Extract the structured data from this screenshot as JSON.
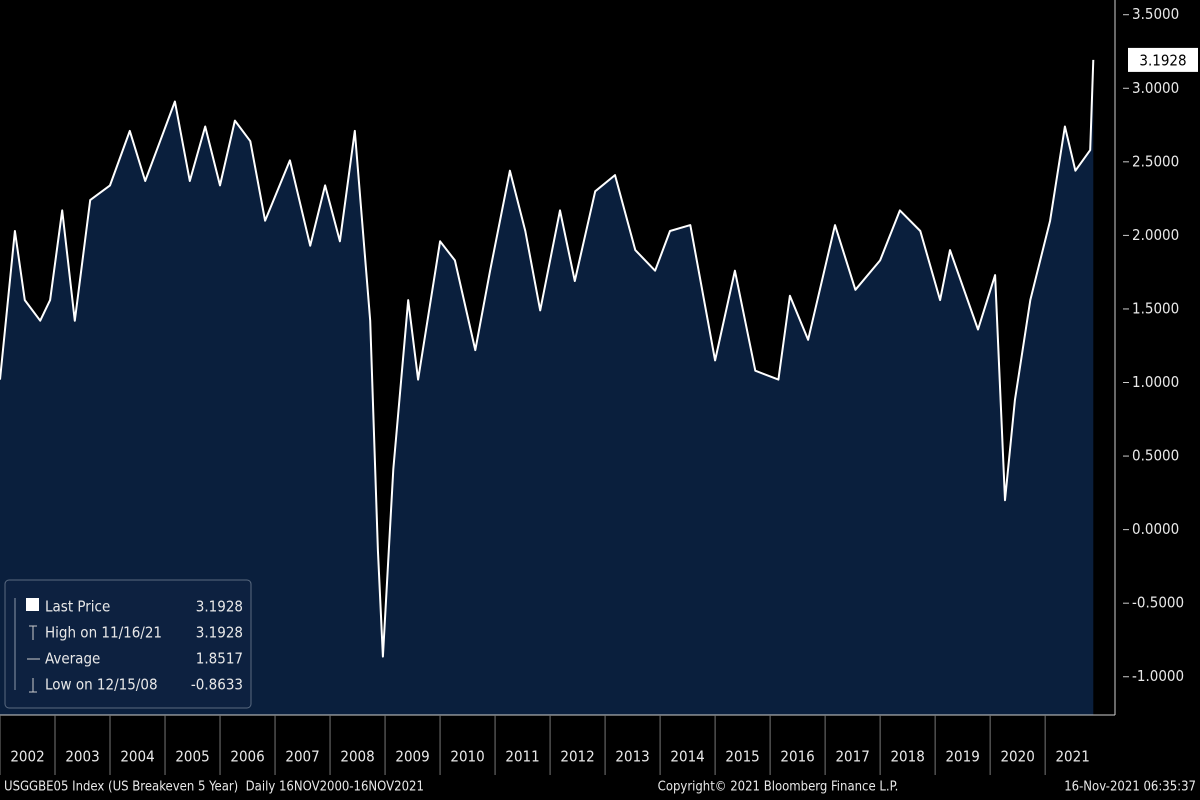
{
  "chart_data": {
    "type": "area",
    "series": [
      {
        "name": "Last Price",
        "color": "#ffffff",
        "fill": "#0a1f3d",
        "x": [
          2002.0,
          2002.27,
          2002.45,
          2002.73,
          2002.91,
          2003.13,
          2003.36,
          2003.64,
          2004.0,
          2004.36,
          2004.64,
          2004.91,
          2005.18,
          2005.45,
          2005.73,
          2006.0,
          2006.27,
          2006.55,
          2006.82,
          2007.27,
          2007.64,
          2007.91,
          2008.18,
          2008.45,
          2008.73,
          2008.87,
          2008.96,
          2009.15,
          2009.42,
          2009.6,
          2010.0,
          2010.27,
          2010.64,
          2010.91,
          2011.27,
          2011.55,
          2011.82,
          2012.18,
          2012.45,
          2012.82,
          2013.18,
          2013.55,
          2013.91,
          2014.18,
          2014.55,
          2015.0,
          2015.36,
          2015.73,
          2016.15,
          2016.36,
          2016.69,
          2017.18,
          2017.55,
          2018.0,
          2018.36,
          2018.73,
          2019.09,
          2019.27,
          2019.78,
          2020.09,
          2020.27,
          2020.45,
          2020.73,
          2021.09,
          2021.36,
          2021.55,
          2021.82,
          2021.875
        ],
        "values": [
          1.02,
          2.03,
          1.56,
          1.42,
          1.56,
          2.17,
          1.42,
          2.24,
          2.34,
          2.71,
          2.37,
          2.64,
          2.91,
          2.37,
          2.74,
          2.34,
          2.78,
          2.64,
          2.1,
          2.51,
          1.93,
          2.34,
          1.96,
          2.71,
          1.42,
          -0.14,
          -0.8633,
          0.41,
          1.56,
          1.02,
          1.96,
          1.83,
          1.22,
          1.76,
          2.44,
          2.03,
          1.49,
          2.17,
          1.69,
          2.3,
          2.41,
          1.9,
          1.76,
          2.03,
          2.07,
          1.15,
          1.76,
          1.08,
          1.02,
          1.59,
          1.29,
          2.07,
          1.63,
          1.83,
          2.17,
          2.03,
          1.56,
          1.9,
          1.36,
          1.73,
          0.2,
          0.88,
          1.56,
          2.1,
          2.74,
          2.44,
          2.58,
          3.1928
        ]
      }
    ],
    "xlim": [
      2002,
      2022.27
    ],
    "xticks": [
      {
        "value": 2002,
        "label": "2002"
      },
      {
        "value": 2003,
        "label": "2003"
      },
      {
        "value": 2004,
        "label": "2004"
      },
      {
        "value": 2005,
        "label": "2005"
      },
      {
        "value": 2006,
        "label": "2006"
      },
      {
        "value": 2007,
        "label": "2007"
      },
      {
        "value": 2008,
        "label": "2008"
      },
      {
        "value": 2009,
        "label": "2009"
      },
      {
        "value": 2010,
        "label": "2010"
      },
      {
        "value": 2011,
        "label": "2011"
      },
      {
        "value": 2012,
        "label": "2012"
      },
      {
        "value": 2013,
        "label": "2013"
      },
      {
        "value": 2014,
        "label": "2014"
      },
      {
        "value": 2015,
        "label": "2015"
      },
      {
        "value": 2016,
        "label": "2016"
      },
      {
        "value": 2017,
        "label": "2017"
      },
      {
        "value": 2018,
        "label": "2018"
      },
      {
        "value": 2019,
        "label": "2019"
      },
      {
        "value": 2020,
        "label": "2020"
      },
      {
        "value": 2021,
        "label": "2021"
      }
    ],
    "ylim": [
      -1.26,
      3.6
    ],
    "yticks": [
      {
        "value": 3.5,
        "label": "3.5000"
      },
      {
        "value": 3,
        "label": "3.0000"
      },
      {
        "value": 2.5,
        "label": "2.5000"
      },
      {
        "value": 2,
        "label": "2.0000"
      },
      {
        "value": 1.5,
        "label": "1.5000"
      },
      {
        "value": 1,
        "label": "1.0000"
      },
      {
        "value": 0.5,
        "label": "0.5000"
      },
      {
        "value": 0,
        "label": "0.0000"
      },
      {
        "value": -0.5,
        "label": "-0.5000"
      },
      {
        "value": -1,
        "label": "-1.0000"
      }
    ],
    "stats": [
      {
        "label": "Last Price",
        "value": 3.1928
      },
      {
        "label": "High on 11/16/21",
        "value": 3.1928
      },
      {
        "label": "Average",
        "value": 1.8517
      },
      {
        "label": "Low on 12/15/08",
        "value": -0.8633
      }
    ],
    "footer": {
      "left": "USGGBE05 Index (US Breakeven 5 Year)  Daily 16NOV2000-16NOV2021",
      "center": "Copyright© 2021 Bloomberg Finance L.P.",
      "right": "16-Nov-2021 06:35:37"
    }
  }
}
